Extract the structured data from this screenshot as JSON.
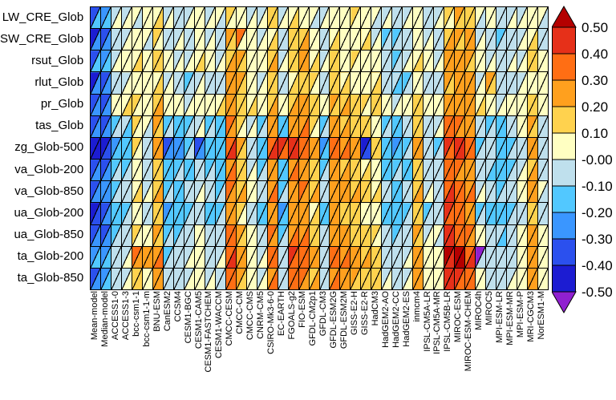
{
  "chart_data": {
    "type": "heatmap",
    "subtype": "portrait-triangle-matrix",
    "description": "Performance-metrics portrait diagram: each cell split by a '/' diagonal into an upper-left and lower-right triangle colored by relative RMSD value bins.",
    "rows": [
      "LW_CRE_Glob",
      "SW_CRE_Glob",
      "rsut_Glob",
      "rlut_Glob",
      "pr_Glob",
      "tas_Glob",
      "zg_Glob-500",
      "va_Glob-200",
      "va_Glob-850",
      "ua_Glob-200",
      "ua_Glob-850",
      "ta_Glob-200",
      "ta_Glob-850"
    ],
    "columns": [
      "Mean-model",
      "Median-model",
      "ACCESS1-0",
      "ACCESS1-3",
      "bcc-csm1-1",
      "bcc-csm1-1-m",
      "BNU-ESM",
      "CanESM2",
      "CCSM4",
      "CESM1-BGC",
      "CESM1-CAM5",
      "CESM1-FASTCHEM",
      "CESM1-WACCM",
      "CMCC-CESM",
      "CMCC-CM",
      "CMCC-CMS",
      "CNRM-CM5",
      "CSIRO-Mk3-6-0",
      "EC-EARTH",
      "FGOALS-g2",
      "FIO-ESM",
      "GFDL-CM2p1",
      "GFDL-CM3",
      "GFDL-ESM2G",
      "GFDL-ESM2M",
      "GISS-E2-H",
      "GISS-E2-R",
      "HadCM3",
      "HadGEM2-AO",
      "HadGEM2-CC",
      "HadGEM2-ES",
      "inmcm4",
      "IPSL-CM5A-LR",
      "IPSL-CM5A-MR",
      "IPSL-CM5B-LR",
      "MIROC-ESM",
      "MIROC-ESM-CHEM",
      "MIROC4h",
      "MIROC5",
      "MPI-ESM-LR",
      "MPI-ESM-MR",
      "MPI-ESM-P",
      "MRI-CGCM3",
      "NorESM1-M"
    ],
    "colorbar": {
      "ticks": [
        "0.50",
        "0.40",
        "0.30",
        "0.20",
        "0.10",
        "-0.00",
        "-0.10",
        "-0.20",
        "-0.30",
        "-0.40",
        "-0.50"
      ],
      "segment_colors_top_to_bottom": [
        "#E63019",
        "#FF6E14",
        "#FFA01E",
        "#FFD24E",
        "#FFFFC2",
        "#BFE0ED",
        "#52C8FF",
        "#3A96FF",
        "#2B50EE",
        "#1C1CD2"
      ],
      "over_color": "#B40000",
      "under_color": "#9020D0"
    },
    "bins": {
      "0": "below -0.50",
      "1": "-0.50 to -0.40",
      "2": "-0.40 to -0.30",
      "3": "-0.30 to -0.20",
      "4": "-0.20 to -0.10",
      "5": "-0.10 to -0.00",
      "6": "0.00 to 0.10",
      "7": "0.10 to 0.20",
      "8": "0.20 to 0.30",
      "9": "0.30 to 0.40",
      "a": "0.40 to 0.50",
      "b": "above 0.50"
    },
    "colors": [
      "#9020D0",
      "#1C1CD2",
      "#2B50EE",
      "#3A96FF",
      "#52C8FF",
      "#BFE0ED",
      "#FFFFC2",
      "#FFD24E",
      "#FFA01E",
      "#FF6E14",
      "#E63019",
      "#B40000"
    ],
    "cell_encoding": "Each cell is two hex digits: first = upper-left triangle bin, second = lower-right triangle bin; bin index maps into 'bins' value ranges and 'colors'.",
    "cells": [
      [
        "24",
        "34",
        "56",
        "56",
        "65",
        "66",
        "67",
        "56",
        "55",
        "56",
        "66",
        "56",
        "65",
        "76",
        "66",
        "56",
        "56",
        "77",
        "56",
        "67",
        "66",
        "65",
        "56",
        "66",
        "66",
        "76",
        "66",
        "65",
        "56",
        "55",
        "56",
        "66",
        "55",
        "56",
        "76",
        "87",
        "77",
        "65",
        "66",
        "55",
        "56",
        "56",
        "66",
        "65"
      ],
      [
        "13",
        "23",
        "55",
        "56",
        "66",
        "65",
        "76",
        "55",
        "56",
        "55",
        "66",
        "56",
        "55",
        "87",
        "96",
        "66",
        "56",
        "67",
        "55",
        "77",
        "78",
        "66",
        "55",
        "67",
        "66",
        "66",
        "67",
        "56",
        "45",
        "45",
        "55",
        "66",
        "56",
        "55",
        "78",
        "87",
        "88",
        "56",
        "55",
        "45",
        "55",
        "56",
        "67",
        "55"
      ],
      [
        "24",
        "34",
        "56",
        "66",
        "67",
        "66",
        "77",
        "66",
        "56",
        "56",
        "67",
        "66",
        "56",
        "78",
        "87",
        "66",
        "66",
        "78",
        "56",
        "77",
        "88",
        "67",
        "56",
        "77",
        "66",
        "76",
        "66",
        "66",
        "55",
        "45",
        "56",
        "67",
        "66",
        "56",
        "88",
        "88",
        "87",
        "66",
        "56",
        "55",
        "56",
        "56",
        "77",
        "66"
      ],
      [
        "13",
        "23",
        "55",
        "56",
        "66",
        "66",
        "67",
        "56",
        "55",
        "45",
        "56",
        "55",
        "55",
        "88",
        "87",
        "66",
        "56",
        "77",
        "55",
        "67",
        "77",
        "76",
        "55",
        "77",
        "67",
        "66",
        "66",
        "67",
        "55",
        "54",
        "45",
        "66",
        "55",
        "55",
        "87",
        "88",
        "88",
        "56",
        "87",
        "55",
        "55",
        "56",
        "66",
        "66"
      ],
      [
        "23",
        "23",
        "66",
        "67",
        "76",
        "66",
        "78",
        "66",
        "66",
        "56",
        "66",
        "66",
        "67",
        "88",
        "77",
        "67",
        "66",
        "78",
        "66",
        "78",
        "88",
        "77",
        "66",
        "87",
        "78",
        "77",
        "76",
        "77",
        "66",
        "56",
        "66",
        "77",
        "66",
        "66",
        "88",
        "88",
        "88",
        "67",
        "66",
        "56",
        "66",
        "66",
        "77",
        "66"
      ],
      [
        "23",
        "23",
        "45",
        "54",
        "76",
        "65",
        "87",
        "45",
        "44",
        "45",
        "56",
        "45",
        "44",
        "98",
        "76",
        "56",
        "45",
        "88",
        "44",
        "88",
        "89",
        "76",
        "45",
        "88",
        "78",
        "77",
        "77",
        "66",
        "45",
        "44",
        "55",
        "77",
        "55",
        "56",
        "99",
        "98",
        "88",
        "55",
        "45",
        "44",
        "55",
        "66",
        "87",
        "55"
      ],
      [
        "11",
        "12",
        "34",
        "44",
        "76",
        "55",
        "88",
        "23",
        "33",
        "45",
        "23",
        "44",
        "44",
        "9a",
        "87",
        "55",
        "44",
        "9a",
        "a9",
        "aa",
        "99",
        "88",
        "34",
        "99",
        "89",
        "88",
        "12",
        "77",
        "44",
        "34",
        "45",
        "88",
        "55",
        "45",
        "a9",
        "aa",
        "99",
        "45",
        "55",
        "44",
        "45",
        "55",
        "88",
        "55"
      ],
      [
        "23",
        "23",
        "45",
        "45",
        "66",
        "55",
        "77",
        "44",
        "45",
        "44",
        "55",
        "45",
        "44",
        "89",
        "77",
        "56",
        "45",
        "88",
        "44",
        "89",
        "88",
        "77",
        "45",
        "88",
        "78",
        "77",
        "67",
        "66",
        "44",
        "45",
        "44",
        "77",
        "55",
        "55",
        "99",
        "98",
        "88",
        "55",
        "54",
        "44",
        "45",
        "56",
        "78",
        "55"
      ],
      [
        "23",
        "33",
        "45",
        "55",
        "67",
        "56",
        "78",
        "45",
        "44",
        "55",
        "56",
        "55",
        "45",
        "98",
        "78",
        "66",
        "55",
        "89",
        "45",
        "88",
        "98",
        "78",
        "55",
        "88",
        "88",
        "78",
        "77",
        "67",
        "55",
        "44",
        "55",
        "78",
        "56",
        "55",
        "9a",
        "99",
        "89",
        "56",
        "55",
        "45",
        "55",
        "66",
        "88",
        "65"
      ],
      [
        "12",
        "23",
        "44",
        "45",
        "66",
        "55",
        "77",
        "34",
        "44",
        "45",
        "55",
        "44",
        "45",
        "88",
        "76",
        "55",
        "44",
        "88",
        "34",
        "88",
        "88",
        "67",
        "44",
        "88",
        "77",
        "77",
        "66",
        "66",
        "44",
        "44",
        "45",
        "77",
        "45",
        "55",
        "a9",
        "99",
        "88",
        "45",
        "44",
        "44",
        "45",
        "55",
        "77",
        "55"
      ],
      [
        "23",
        "23",
        "45",
        "55",
        "76",
        "66",
        "87",
        "45",
        "45",
        "55",
        "66",
        "55",
        "55",
        "99",
        "87",
        "66",
        "55",
        "98",
        "45",
        "89",
        "89",
        "77",
        "55",
        "88",
        "88",
        "77",
        "77",
        "76",
        "55",
        "45",
        "55",
        "87",
        "56",
        "65",
        "aa",
        "99",
        "98",
        "66",
        "55",
        "54",
        "55",
        "66",
        "88",
        "66"
      ],
      [
        "34",
        "34",
        "55",
        "56",
        "98",
        "88",
        "89",
        "45",
        "55",
        "56",
        "66",
        "55",
        "56",
        "9a",
        "88",
        "66",
        "56",
        "99",
        "55",
        "a9",
        "99",
        "88",
        "55",
        "99",
        "89",
        "88",
        "78",
        "77",
        "55",
        "55",
        "56",
        "88",
        "66",
        "66",
        "ba",
        "bb",
        "9a",
        "05",
        "55",
        "55",
        "55",
        "66",
        "88",
        "66"
      ],
      [
        "23",
        "34",
        "55",
        "56",
        "77",
        "66",
        "88",
        "55",
        "55",
        "56",
        "66",
        "56",
        "55",
        "99",
        "87",
        "66",
        "56",
        "89",
        "55",
        "99",
        "98",
        "78",
        "55",
        "89",
        "88",
        "87",
        "77",
        "77",
        "56",
        "55",
        "56",
        "88",
        "66",
        "66",
        "aa",
        "a9",
        "99",
        "66",
        "55",
        "55",
        "56",
        "66",
        "88",
        "66"
      ]
    ]
  }
}
